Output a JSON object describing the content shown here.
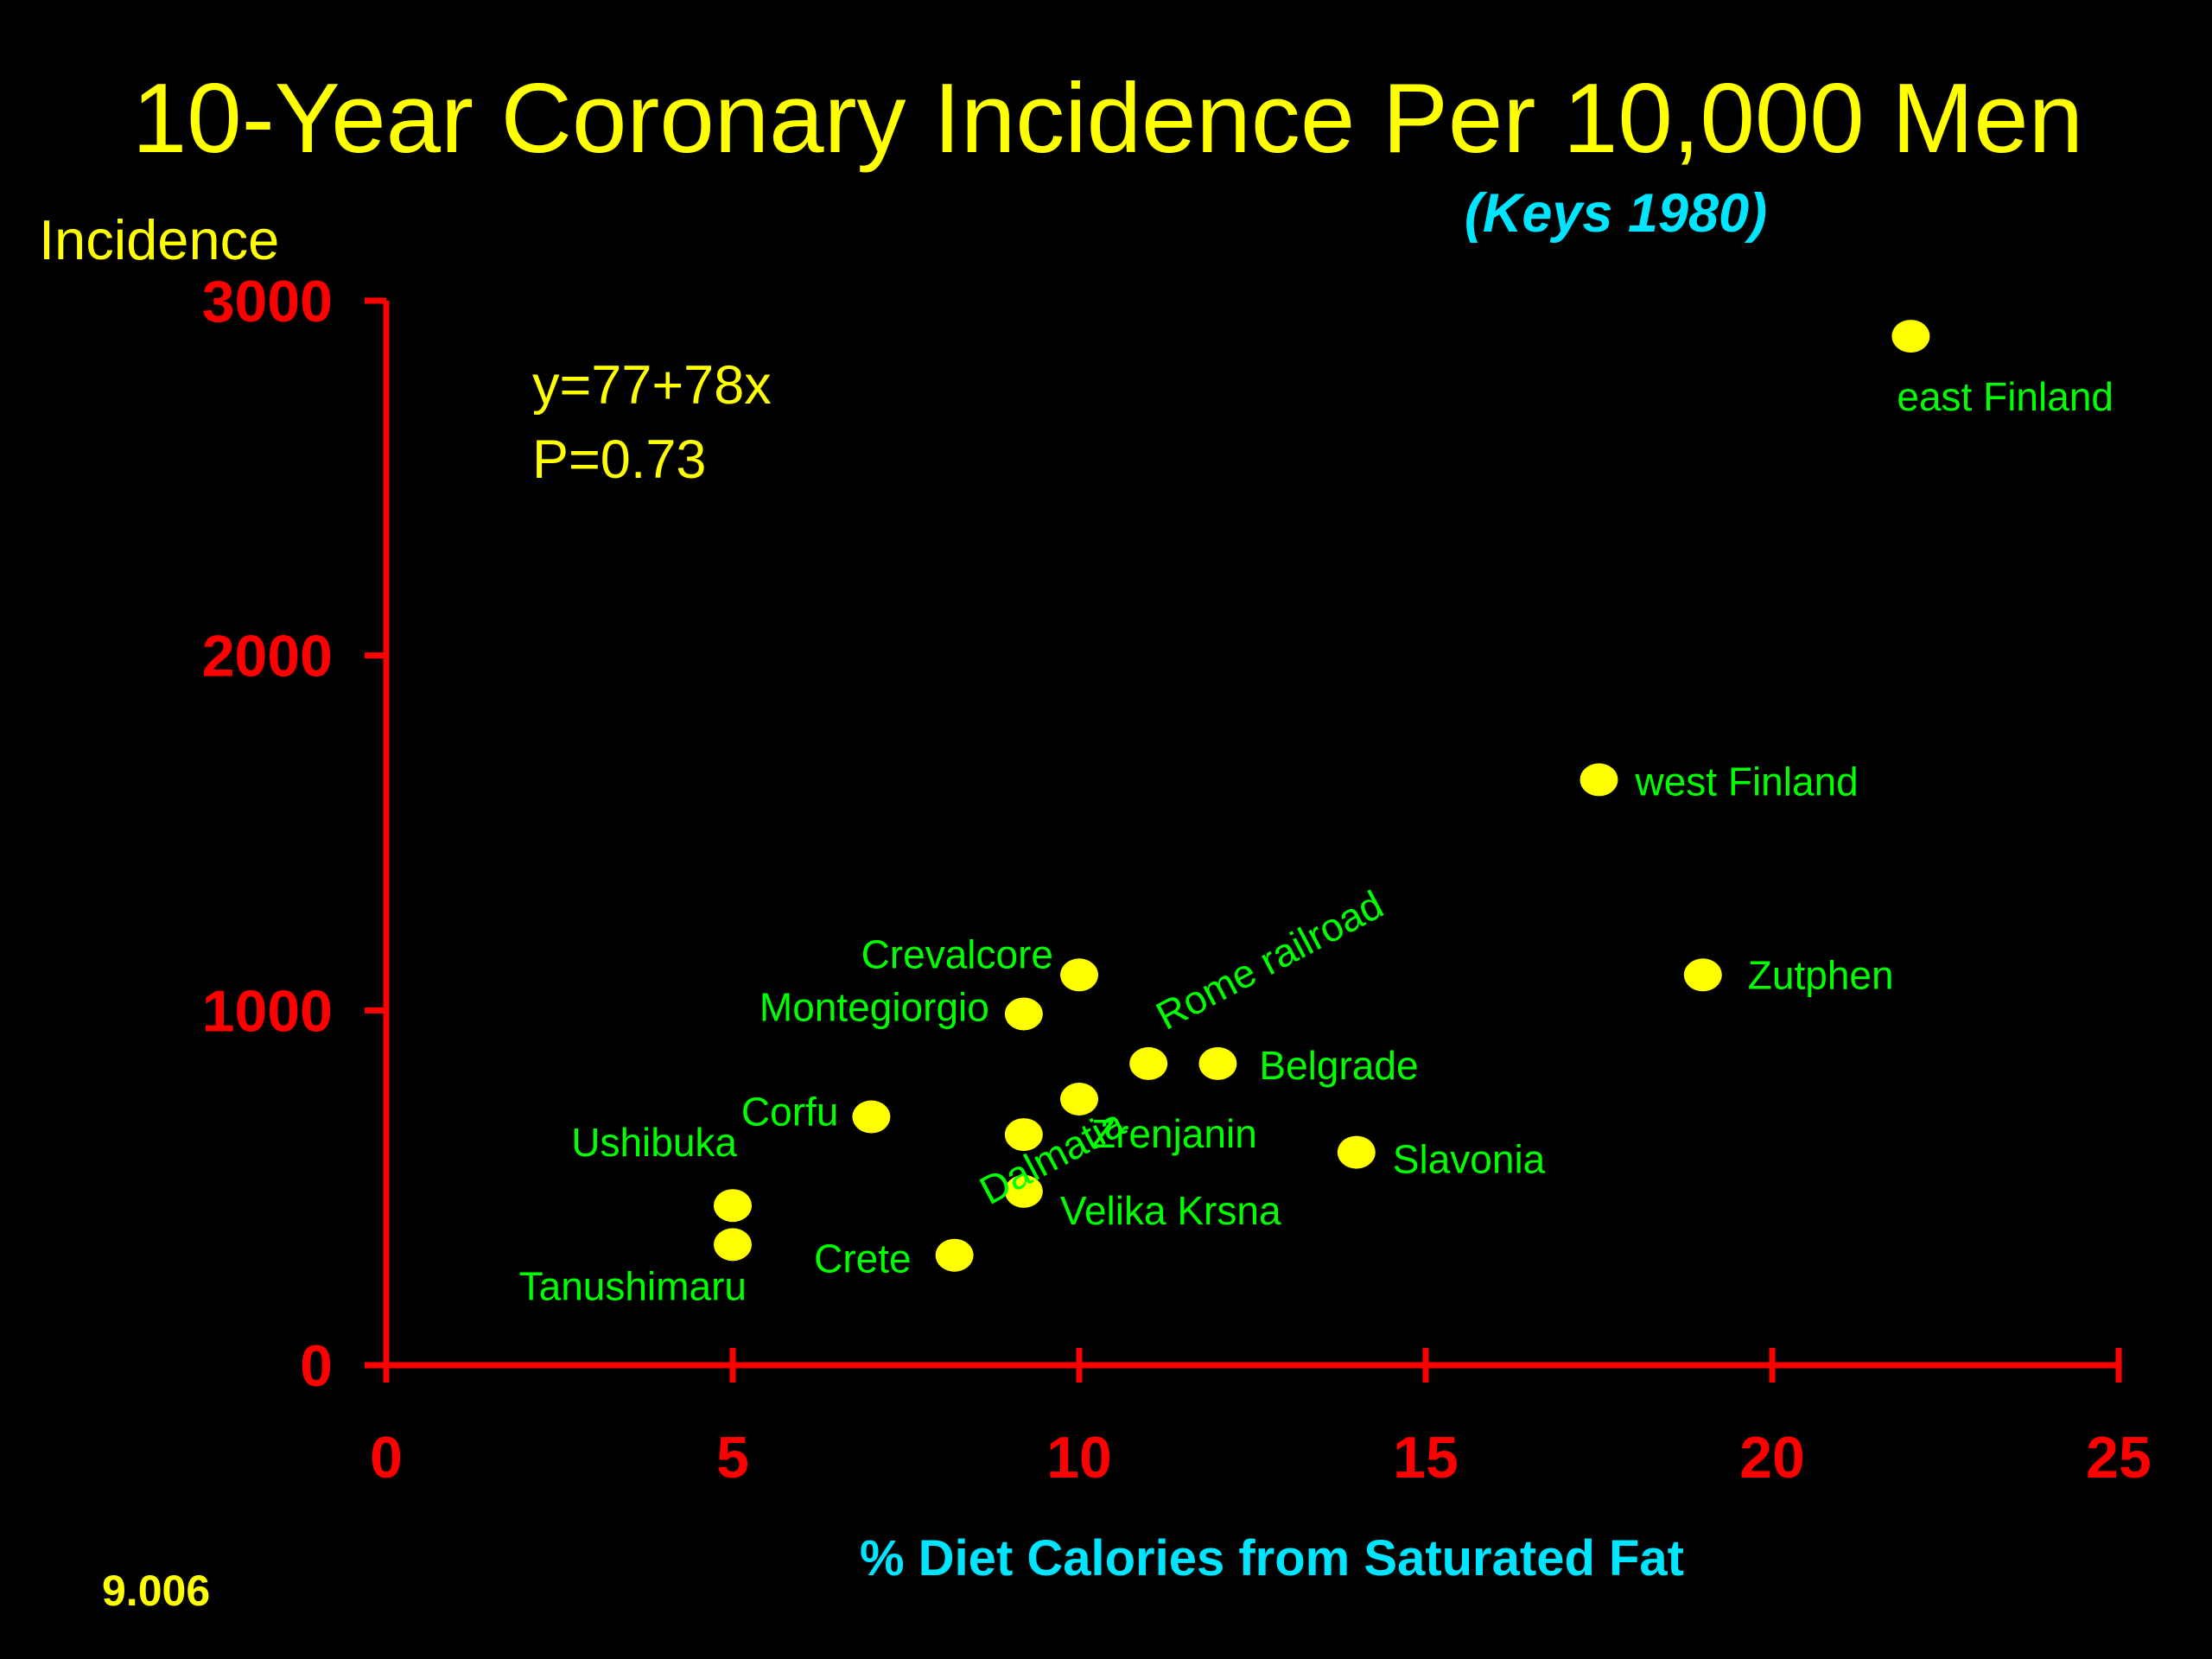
{
  "slide_number": "9.006",
  "chart_data": {
    "type": "scatter",
    "title": "10-Year Coronary Incidence Per 10,000 Men",
    "subtitle": "(Keys 1980)",
    "xlabel": "% Diet Calories from Saturated Fat",
    "ylabel": "Incidence",
    "xlim": [
      0,
      25
    ],
    "ylim": [
      0,
      3000
    ],
    "x_ticks": [
      "0",
      "5",
      "10",
      "15",
      "20",
      "25"
    ],
    "y_ticks": [
      "0",
      "1000",
      "2000",
      "3000"
    ],
    "annotations": [
      "y=77+78x",
      "P=0.73"
    ],
    "colors": {
      "axis": "#ff0000",
      "points": "#ffff00",
      "point_labels": "#00ff00",
      "title": "#ffff00",
      "subtitle": "#00e5ff"
    },
    "points": [
      {
        "label": "east Finland",
        "x": 22.0,
        "y": 2900
      },
      {
        "label": "west Finland",
        "x": 17.5,
        "y": 1650
      },
      {
        "label": "Zutphen",
        "x": 19.0,
        "y": 1100
      },
      {
        "label": "Crevalcore",
        "x": 10.0,
        "y": 1100
      },
      {
        "label": "Montegiorgio",
        "x": 9.2,
        "y": 990
      },
      {
        "label": "Rome railroad",
        "x": 11.0,
        "y": 850
      },
      {
        "label": "Belgrade",
        "x": 12.0,
        "y": 850
      },
      {
        "label": "Zrenjanin",
        "x": 10.0,
        "y": 750
      },
      {
        "label": "Dalmatia",
        "x": 9.2,
        "y": 650
      },
      {
        "label": "Corfu",
        "x": 7.0,
        "y": 700
      },
      {
        "label": "Slavonia",
        "x": 14.0,
        "y": 600
      },
      {
        "label": "Velika Krsna",
        "x": 9.2,
        "y": 490
      },
      {
        "label": "Ushibuka",
        "x": 5.0,
        "y": 450
      },
      {
        "label": "Tanushimaru",
        "x": 5.0,
        "y": 340
      },
      {
        "label": "Crete",
        "x": 8.2,
        "y": 310
      }
    ]
  }
}
